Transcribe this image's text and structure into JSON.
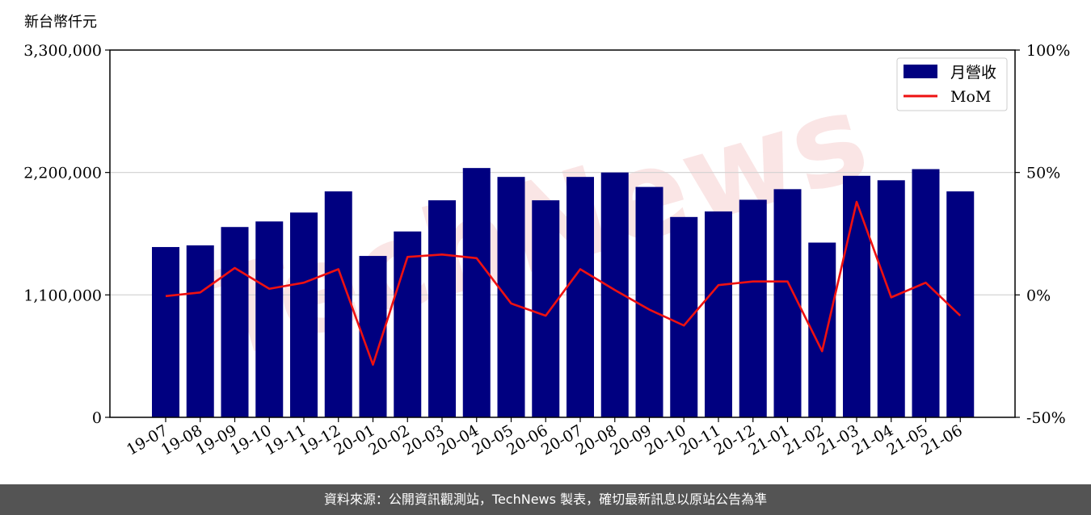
{
  "footer": {
    "text": "資料來源：公開資訊觀測站，TechNews 製表，確切最新訊息以原站公告為準"
  },
  "watermark": {
    "text": "TechNews",
    "color": "#f4c6c6"
  },
  "chart_data": {
    "type": "bar+line",
    "unit_label": "新台幣仟元",
    "categories": [
      "19-07",
      "19-08",
      "19-09",
      "19-10",
      "19-11",
      "19-12",
      "20-01",
      "20-02",
      "20-03",
      "20-04",
      "20-05",
      "20-06",
      "20-07",
      "20-08",
      "20-09",
      "20-10",
      "20-11",
      "20-12",
      "21-01",
      "21-02",
      "21-03",
      "21-04",
      "21-05",
      "21-06"
    ],
    "y_left": {
      "ylim": [
        0,
        3300000
      ],
      "ticks": [
        0,
        1100000,
        2200000,
        3300000
      ],
      "tick_labels": [
        "0",
        "1,100,000",
        "2,200,000",
        "3,300,000"
      ]
    },
    "y_right": {
      "ylim": [
        -50,
        100
      ],
      "ticks": [
        -50,
        0,
        50,
        100
      ],
      "tick_labels": [
        "-50%",
        "0%",
        "50%",
        "100%"
      ]
    },
    "grid": "horizontal",
    "legend": "top-right",
    "series": [
      {
        "name": "月營收",
        "type": "bar",
        "axis": "left",
        "color": "#000080",
        "values": [
          1530000,
          1545000,
          1710000,
          1760000,
          1840000,
          2030000,
          1450000,
          1670000,
          1950000,
          2240000,
          2160000,
          1950000,
          2160000,
          2200000,
          2070000,
          1800000,
          1850000,
          1955000,
          2050000,
          1570000,
          2170000,
          2130000,
          2230000,
          2030000
        ]
      },
      {
        "name": "MoM",
        "type": "line",
        "axis": "right",
        "color": "#ee1111",
        "values": [
          -0.5,
          1,
          11,
          2.5,
          5,
          10.5,
          -28.5,
          15.5,
          16.5,
          15,
          -3.5,
          -8.5,
          10.5,
          2,
          -6,
          -12.5,
          4,
          5.5,
          5.5,
          -23,
          38,
          -1,
          5,
          -8.5
        ]
      }
    ]
  }
}
